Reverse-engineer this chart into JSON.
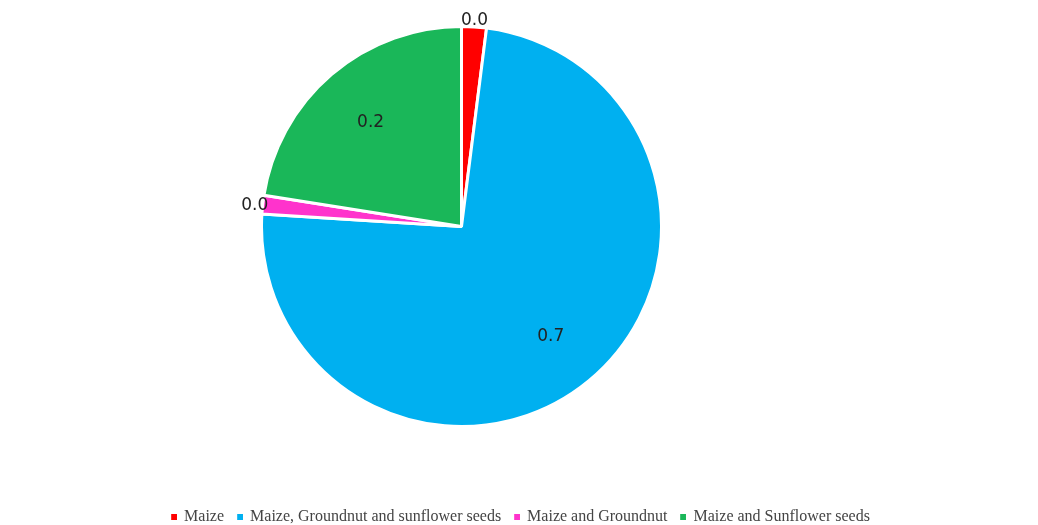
{
  "chart_data": {
    "type": "pie",
    "categories": [
      "Maize",
      "Maize, Groundnut and sunflower seeds",
      "Maize and Groundnut",
      "Maize and Sunflower seeds"
    ],
    "values": [
      0.02,
      0.74,
      0.015,
      0.225
    ],
    "colors": [
      "#ff0000",
      "#00b0f0",
      "#ff33cc",
      "#1ab759"
    ],
    "value_labels": [
      "0.0",
      "0.7",
      "0.0",
      "0.2"
    ],
    "legend": "bottom"
  }
}
